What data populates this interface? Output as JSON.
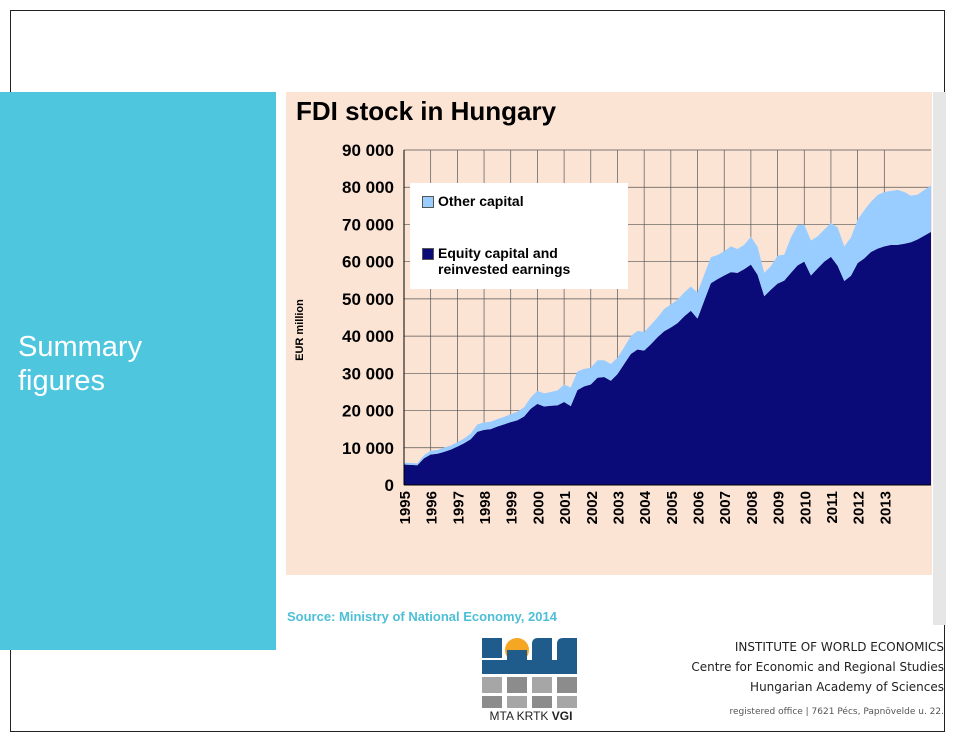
{
  "slide": {
    "section": "Summary figures",
    "source": "Source: Ministry of National Economy, 2014",
    "institute": [
      "INSTITUTE OF WORLD ECONOMICS",
      "Centre for Economic and Regional Studies",
      "Hungarian Academy of Sciences"
    ],
    "address": "registered office | 7621 Pécs, Papnövelde u. 22.",
    "logo": {
      "text": "MTA KRTK",
      "bold": "VGI"
    }
  },
  "chart_data": {
    "type": "stacked_area",
    "title": "FDI stock in Hungary",
    "y_label": "EUR million",
    "categories": [
      "1995",
      null,
      null,
      null,
      "1996",
      null,
      null,
      null,
      "1997",
      null,
      null,
      null,
      "1998",
      null,
      null,
      null,
      "1999",
      null,
      null,
      null,
      "2000",
      null,
      null,
      null,
      "2001",
      null,
      null,
      null,
      "2002",
      null,
      null,
      null,
      "2003",
      null,
      null,
      null,
      "2004",
      null,
      null,
      null,
      "2005",
      null,
      null,
      null,
      "2006",
      null,
      null,
      null,
      "2007",
      null,
      null,
      null,
      "2008",
      null,
      null,
      null,
      "2009",
      null,
      null,
      null,
      "2010",
      null,
      null,
      null,
      "2011",
      null,
      null,
      null,
      "2012",
      null,
      null,
      null,
      "2013",
      null,
      null,
      null,
      null,
      null,
      null,
      null
    ],
    "series": [
      {
        "name": "Equity capital and reinvested earnings",
        "color": "#0a0a78",
        "values": [
          5500,
          5400,
          5300,
          7200,
          8200,
          8400,
          8900,
          9500,
          10300,
          11200,
          12300,
          14300,
          14800,
          15000,
          15700,
          16300,
          16900,
          17400,
          18400,
          20500,
          21800,
          21100,
          21300,
          21400,
          22300,
          21200,
          25500,
          26500,
          27000,
          28800,
          29000,
          28000,
          29800,
          32500,
          35200,
          36400,
          36100,
          37800,
          39700,
          41300,
          42300,
          43500,
          45300,
          46800,
          44700,
          49500,
          54200,
          55300,
          56300,
          57200,
          57000,
          58000,
          59200,
          56500,
          50700,
          52500,
          54100,
          54900,
          57000,
          59000,
          60000,
          56300,
          58200,
          60000,
          61300,
          58900,
          54800,
          56200,
          59600,
          60900,
          62600,
          63500,
          64100,
          64500,
          64500,
          64800,
          65200,
          66000,
          67000,
          68000
        ]
      },
      {
        "name": "Other capital",
        "color": "#99ccff",
        "values": [
          500,
          500,
          500,
          800,
          1000,
          1000,
          1100,
          1100,
          1200,
          1300,
          1500,
          2000,
          2000,
          2000,
          2000,
          2000,
          2100,
          2300,
          2500,
          3000,
          3500,
          3500,
          3700,
          4000,
          4700,
          5000,
          5000,
          4700,
          4500,
          4700,
          4500,
          4500,
          4400,
          4500,
          4800,
          5000,
          5000,
          5200,
          5300,
          6000,
          6200,
          6300,
          6400,
          6500,
          7000,
          7000,
          7000,
          6500,
          6500,
          6900,
          6400,
          6500,
          7500,
          7500,
          6300,
          6300,
          7500,
          7000,
          9500,
          10800,
          10000,
          9400,
          8600,
          8600,
          9100,
          10300,
          9300,
          10300,
          11700,
          12900,
          13500,
          14400,
          14600,
          14500,
          14800,
          13900,
          12500,
          12000,
          12300,
          12500
        ]
      }
    ],
    "ylim": [
      0,
      90000
    ],
    "yticks": [
      0,
      {
        "value": 10000,
        "label": "10 000"
      },
      {
        "value": 20000,
        "label": "20 000"
      },
      {
        "value": 30000,
        "label": "30 000"
      },
      {
        "value": 40000,
        "label": "40 000"
      },
      {
        "value": 50000,
        "label": "50 000"
      },
      {
        "value": 60000,
        "label": "60 000"
      },
      {
        "value": 70000,
        "label": "70 000"
      },
      {
        "value": 80000,
        "label": "80 000"
      },
      {
        "value": 90000,
        "label": "90 000"
      }
    ],
    "grid": true,
    "legend": "upper left"
  }
}
